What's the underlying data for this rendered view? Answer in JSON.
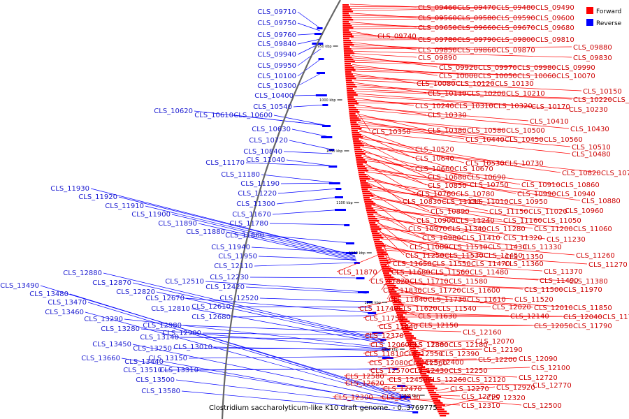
{
  "caption": "Clostridium saccharolyticum-like K10 draft genome. - 0..3769775",
  "legend": [
    {
      "label": "Forward",
      "color": "#ff0000"
    },
    {
      "label": "Reverse",
      "color": "#0000ff"
    }
  ],
  "colors": {
    "forward": "#ff0000",
    "reverse": "#0000ff",
    "backbone": "#666666"
  },
  "ticks": [
    "950 kbp",
    "1000 kbp",
    "1050 kbp",
    "1100 kbp",
    "1150 kbp",
    "1200 kbp",
    "1250 kbp",
    "1300 kbp"
  ],
  "forward_labels": [
    "CLS_09460",
    "CLS_09470",
    "CLS_09480",
    "CLS_09490",
    "CLS_09560",
    "CLS_09580",
    "CLS_09590",
    "CLS_09600",
    "CLS_09650",
    "CLS_09660",
    "CLS_09670",
    "CLS_09680",
    "CLS_09740",
    "CLS_09780",
    "CLS_09790",
    "CLS_09800",
    "CLS_09810",
    "CLS_09850",
    "CLS_09860",
    "CLS_09870",
    "CLS_09880",
    "CLS_09830",
    "CLS_09890",
    "CLS_09920",
    "CLS_09970",
    "CLS_09980",
    "CLS_09990",
    "CLS_10000",
    "CLS_10050",
    "CLS_10060",
    "CLS_10070",
    "CLS_10080",
    "CLS_10120",
    "CLS_10130",
    "CLS_10150",
    "CLS_10110",
    "CLS_10200",
    "CLS_10210",
    "CLS_10220",
    "CLS_10160",
    "CLS_10170",
    "CLS_10230",
    "CLS_10240",
    "CLS_10310",
    "CLS_10320",
    "CLS_10330",
    "CLS_10410",
    "CLS_10430",
    "CLS_10350",
    "CLS_10380",
    "CLS_10580",
    "CLS_10500",
    "CLS_10440",
    "CLS_10450",
    "CLS_10560",
    "CLS_10510",
    "CLS_10520",
    "CLS_10480",
    "CLS_10640",
    "CLS_10530",
    "CLS_10730",
    "CLS_10660",
    "CLS_10670",
    "CLS_10820",
    "CLS_10740",
    "CLS_10680",
    "CLS_10690",
    "CLS_10850",
    "CLS_10750",
    "CLS_10910",
    "CLS_10860",
    "CLS_10760",
    "CLS_10780",
    "CLS_10990",
    "CLS_10940",
    "CLS_10880",
    "CLS_10830",
    "CLS_11130",
    "CLS_11010",
    "CLS_10950",
    "CLS_10890",
    "CLS_11150",
    "CLS_11020",
    "CLS_10960",
    "CLS_10900",
    "CLS_11240",
    "CLS_11160",
    "CLS_11050",
    "CLS_10970",
    "CLS_11340",
    "CLS_11280",
    "CLS_11200",
    "CLS_11060",
    "CLS_10980",
    "CLS_11410",
    "CLS_11320",
    "CLS_11230",
    "CLS_11080",
    "CLS_11510",
    "CLS_11430",
    "CLS_11330",
    "CLS_11250",
    "CLS_11530",
    "CLS_11450",
    "CLS_11350",
    "CLS_11260",
    "CLS_11650",
    "CLS_11550",
    "CLS_11470",
    "CLS_11360",
    "CLS_11270",
    "CLS_11870",
    "CLS_11680",
    "CLS_11560",
    "CLS_11480",
    "CLS_11370",
    "CLS_11820",
    "CLS_11710",
    "CLS_11580",
    "CLS_11490",
    "CLS_11380",
    "CLS_11830",
    "CLS_11720",
    "CLS_11600",
    "CLS_11500",
    "CLS_11970",
    "CLS_11840",
    "CLS_11730",
    "CLS_11610",
    "CLS_11520",
    "CLS_12010",
    "CLS_11850",
    "CLS_11740",
    "CLS_11620",
    "CLS_11540",
    "CLS_12020",
    "CLS_11750",
    "CLS_11630",
    "CLS_12140",
    "CLS_12040",
    "CLS_11760",
    "CLS_11640",
    "CLS_12150",
    "CLS_12050",
    "CLS_11790",
    "CLS_12370",
    "CLS_12160",
    "CLS_12060",
    "CLS_11800",
    "CLS_12380",
    "CLS_12180",
    "CLS_12070",
    "CLS_11810",
    "CLS_12550",
    "CLS_12390",
    "CLS_12190",
    "CLS_12080",
    "CLS_12560",
    "CLS_12400",
    "CLS_12200",
    "CLS_12090",
    "CLS_12570",
    "CLS_12430",
    "CLS_12250",
    "CLS_12100",
    "CLS_12720",
    "CLS_12580",
    "CLS_12450",
    "CLS_12260",
    "CLS_12120",
    "CLS_12770",
    "CLS_12620",
    "CLS_12470",
    "CLS_12270",
    "CLS_12920",
    "CLS_12790",
    "CLS_12500",
    "CLS_12300",
    "CLS_12530",
    "CLS_12310",
    "CLS_12320"
  ],
  "reverse_labels": [
    "CLS_09710",
    "CLS_09750",
    "CLS_09760",
    "CLS_09840",
    "CLS_09940",
    "CLS_09950",
    "CLS_10100",
    "CLS_10300",
    "CLS_10400",
    "CLS_10540",
    "CLS_10620",
    "CLS_10610",
    "CLS_10600",
    "CLS_10630",
    "CLS_10720",
    "CLS_10840",
    "CLS_11170",
    "CLS_11040",
    "CLS_11180",
    "CLS_11190",
    "CLS_11220",
    "CLS_11930",
    "CLS_11920",
    "CLS_11300",
    "CLS_11910",
    "CLS_11900",
    "CLS_11670",
    "CLS_11890",
    "CLS_11780",
    "CLS_11880",
    "CLS_11860",
    "CLS_11940",
    "CLS_11950",
    "CLS_12110",
    "CLS_12880",
    "CLS_12230",
    "CLS_12870",
    "CLS_12510",
    "CLS_12420",
    "CLS_12820",
    "CLS_13490",
    "CLS_12520",
    "CLS_13480",
    "CLS_12670",
    "CLS_12610",
    "CLS_13470",
    "CLS_12810",
    "CLS_13460",
    "CLS_12680",
    "CLS_13290",
    "CLS_12980",
    "CLS_13280",
    "CLS_12900",
    "CLS_13140",
    "CLS_13450",
    "CLS_13250",
    "CLS_13010",
    "CLS_13150",
    "CLS_13660",
    "CLS_13440",
    "CLS_13510",
    "CLS_13310",
    "CLS_13500",
    "CLS_13580"
  ]
}
